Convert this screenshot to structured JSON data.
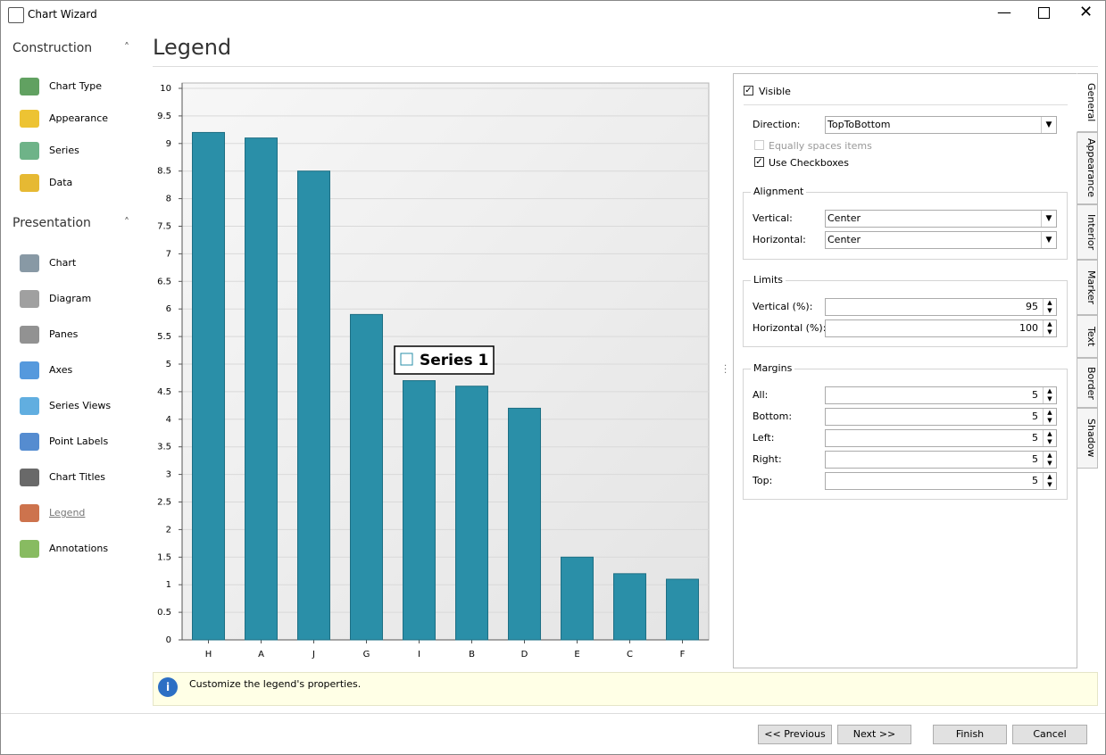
{
  "window": {
    "title": "Chart Wizard"
  },
  "sidebar": {
    "sections": [
      {
        "title": "Construction",
        "items": [
          "Chart Type",
          "Appearance",
          "Series",
          "Data"
        ]
      },
      {
        "title": "Presentation",
        "items": [
          "Chart",
          "Diagram",
          "Panes",
          "Axes",
          "Series Views",
          "Point Labels",
          "Chart Titles",
          "Legend",
          "Annotations"
        ]
      }
    ]
  },
  "page_title": "Legend",
  "chart_data": {
    "type": "bar",
    "categories": [
      "H",
      "A",
      "J",
      "G",
      "I",
      "B",
      "D",
      "E",
      "C",
      "F"
    ],
    "series": [
      {
        "name": "Series 1",
        "color": "#2a8fa8",
        "values": [
          9.2,
          9.1,
          8.5,
          5.9,
          4.7,
          4.6,
          4.2,
          1.5,
          1.2,
          1.1
        ]
      }
    ],
    "ylim": [
      0,
      10
    ],
    "yticks": [
      0,
      0.5,
      1,
      1.5,
      2,
      2.5,
      3,
      3.5,
      4,
      4.5,
      5,
      5.5,
      6,
      6.5,
      7,
      7.5,
      8,
      8.5,
      9,
      9.5,
      10
    ],
    "grid": true,
    "legend_checkbox": true
  },
  "properties": {
    "visible": "Visible",
    "direction_label": "Direction:",
    "direction_value": "TopToBottom",
    "equally_spaces": "Equally spaces items",
    "use_checkboxes": "Use Checkboxes",
    "alignment": {
      "title": "Alignment",
      "rows": [
        [
          "Vertical:",
          "Center"
        ],
        [
          "Horizontal:",
          "Center"
        ]
      ]
    },
    "limits": {
      "title": "Limits",
      "rows": [
        [
          "Vertical (%):",
          "95"
        ],
        [
          "Horizontal (%):",
          "100"
        ]
      ]
    },
    "margins": {
      "title": "Margins",
      "rows": [
        [
          "All:",
          "5"
        ],
        [
          "Bottom:",
          "5"
        ],
        [
          "Left:",
          "5"
        ],
        [
          "Right:",
          "5"
        ],
        [
          "Top:",
          "5"
        ]
      ]
    }
  },
  "tabs": [
    "General",
    "Appearance",
    "Interior",
    "Marker",
    "Text",
    "Border",
    "Shadow"
  ],
  "info": "Customize the legend's properties.",
  "buttons": [
    "<< Previous",
    "Next >>",
    "Finish",
    "Cancel"
  ]
}
